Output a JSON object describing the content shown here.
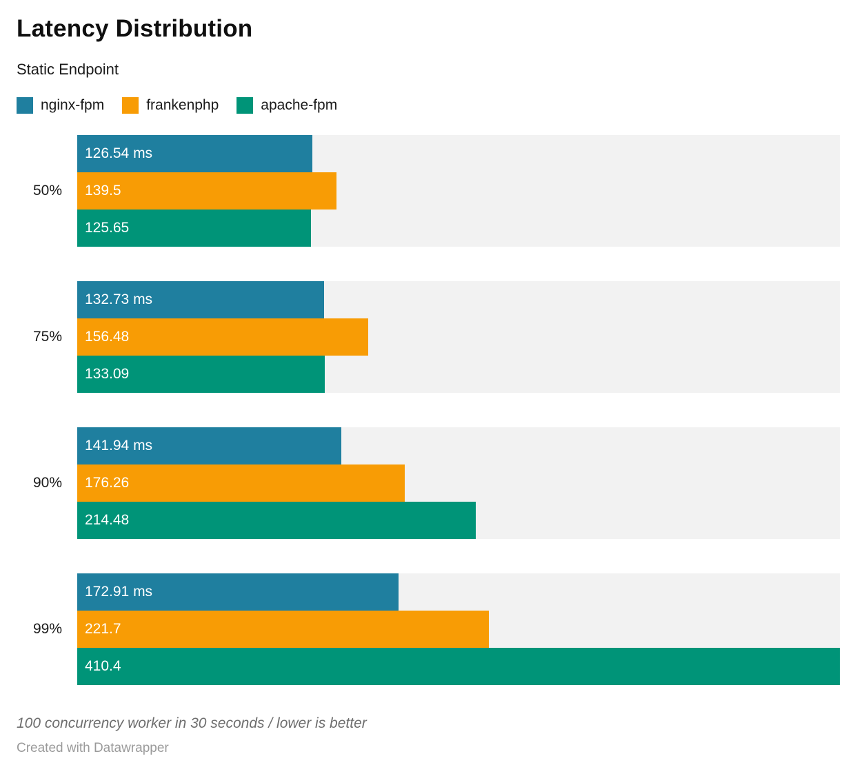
{
  "header": {
    "title": "Latency Distribution",
    "subtitle": "Static Endpoint"
  },
  "chart_data": {
    "type": "bar",
    "orientation": "horizontal",
    "unit": "ms",
    "axis_max": 410.4,
    "grid": false,
    "legend_position": "top",
    "track_color": "#f2f2f2",
    "label_text_color": "#ffffff",
    "categories": [
      "50%",
      "75%",
      "90%",
      "99%"
    ],
    "series": [
      {
        "name": "nginx-fpm",
        "color": "#1f7f9f",
        "values": [
          126.54,
          132.73,
          141.94,
          172.91
        ]
      },
      {
        "name": "frankenphp",
        "color": "#f89c05",
        "values": [
          139.5,
          156.48,
          176.26,
          221.7
        ]
      },
      {
        "name": "apache-fpm",
        "color": "#009478",
        "values": [
          125.65,
          133.09,
          214.48,
          410.4
        ]
      }
    ],
    "bar_labels": [
      [
        "126.54 ms",
        "139.5",
        "125.65"
      ],
      [
        "132.73 ms",
        "156.48",
        "133.09"
      ],
      [
        "141.94 ms",
        "176.26",
        "214.48"
      ],
      [
        "172.91 ms",
        "221.7",
        "410.4"
      ]
    ]
  },
  "footer": {
    "note": "100 concurrency worker in 30 seconds / lower is better",
    "attribution": "Created with Datawrapper"
  }
}
